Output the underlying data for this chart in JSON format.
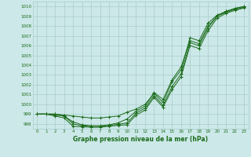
{
  "xlabel_label": "Graphe pression niveau de la mer (hPa)",
  "x_ticks": [
    0,
    1,
    2,
    3,
    4,
    5,
    6,
    7,
    8,
    9,
    10,
    11,
    12,
    13,
    14,
    15,
    16,
    17,
    18,
    19,
    20,
    21,
    22,
    23
  ],
  "ylim": [
    997.5,
    1010.5
  ],
  "yticks": [
    998,
    999,
    1000,
    1001,
    1002,
    1003,
    1004,
    1005,
    1006,
    1007,
    1008,
    1009,
    1010
  ],
  "xlim": [
    -0.5,
    23.5
  ],
  "bg_color": "#cce8e8",
  "grid_color": "#aacccc",
  "line_color": "#1a6b1a",
  "line1": [
    999.0,
    999.0,
    999.0,
    998.9,
    998.8,
    998.7,
    998.6,
    998.6,
    998.7,
    998.8,
    999.2,
    999.5,
    1000.0,
    1001.1,
    1000.2,
    1002.3,
    1003.5,
    1006.8,
    1006.5,
    1008.3,
    1009.1,
    1009.5,
    1009.8,
    1010.0
  ],
  "line2": [
    999.0,
    999.0,
    999.0,
    998.8,
    998.2,
    997.9,
    997.8,
    997.8,
    997.9,
    998.1,
    998.5,
    999.3,
    999.8,
    1001.2,
    1000.5,
    1002.5,
    1003.8,
    1006.5,
    1006.2,
    1008.0,
    1009.0,
    1009.5,
    1009.8,
    1010.0
  ],
  "line3": [
    999.0,
    999.0,
    998.9,
    998.8,
    998.0,
    997.8,
    997.75,
    997.75,
    997.85,
    997.95,
    998.1,
    999.1,
    999.6,
    1000.9,
    999.9,
    1001.8,
    1003.1,
    1006.3,
    1006.0,
    1007.8,
    1009.0,
    1009.4,
    1009.7,
    1009.9
  ],
  "line4": [
    999.0,
    999.0,
    998.8,
    998.6,
    997.75,
    997.7,
    997.65,
    997.65,
    997.75,
    997.85,
    997.9,
    998.9,
    999.4,
    1000.7,
    999.7,
    1001.5,
    1002.8,
    1006.0,
    1005.7,
    1007.5,
    1008.8,
    1009.3,
    1009.6,
    1009.85
  ]
}
